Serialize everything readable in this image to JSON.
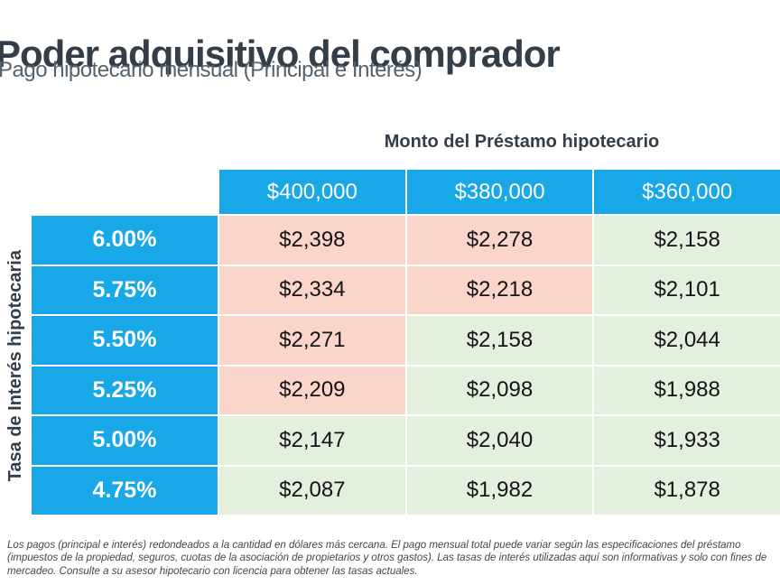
{
  "page": {
    "title": "Poder adquisitivo del comprador",
    "subtitle": "Pago hipotecario mensual (Principal e Interés)"
  },
  "table": {
    "column_group_label": "Monto del Préstamo hipotecario",
    "row_group_label": "Tasa de Interés hipotecaria",
    "columns": [
      "$400,000",
      "$380,000",
      "$360,000"
    ],
    "rows": [
      {
        "rate": "6.00%",
        "values": [
          "$2,398",
          "$2,278",
          "$2,158"
        ],
        "highlight": [
          "high",
          "high",
          "low"
        ]
      },
      {
        "rate": "5.75%",
        "values": [
          "$2,334",
          "$2,218",
          "$2,101"
        ],
        "highlight": [
          "high",
          "high",
          "low"
        ]
      },
      {
        "rate": "5.50%",
        "values": [
          "$2,271",
          "$2,158",
          "$2,044"
        ],
        "highlight": [
          "high",
          "low",
          "low"
        ]
      },
      {
        "rate": "5.25%",
        "values": [
          "$2,209",
          "$2,098",
          "$1,988"
        ],
        "highlight": [
          "high",
          "low",
          "low"
        ]
      },
      {
        "rate": "5.00%",
        "values": [
          "$2,147",
          "$2,040",
          "$1,933"
        ],
        "highlight": [
          "low",
          "low",
          "low"
        ]
      },
      {
        "rate": "4.75%",
        "values": [
          "$2,087",
          "$1,982",
          "$1,878"
        ],
        "highlight": [
          "low",
          "low",
          "low"
        ]
      }
    ]
  },
  "footnote": "Los pagos (principal e interés) redondeados a la cantidad en dólares más cercana. El pago mensual total puede variar según las especificaciones del préstamo (impuestos de la propiedad, seguros, cuotas de la asociación de propietarios y otros gastos). Las tasas de interés utilizadas aquí son informativas y solo con fines de mercadeo. Consulte a su asesor hipotecario con licencia para obtener las tasas actuales.",
  "colors": {
    "header_blue": "#18A8E8",
    "cell_pink": "#FBD4CA",
    "cell_green": "#E4F0DE",
    "title_dark": "#333E48",
    "subtitle_gray": "#54636D",
    "footnote_gray": "#3D474F"
  },
  "chart_data": {
    "type": "table",
    "title": "Poder adquisitivo del comprador",
    "subtitle": "Pago hipotecario mensual (Principal e Interés)",
    "columns_label": "Monto del Préstamo hipotecario",
    "rows_label": "Tasa de Interés hipotecaria",
    "columns": [
      "$400,000",
      "$380,000",
      "$360,000"
    ],
    "rows": [
      "6.00%",
      "5.75%",
      "5.50%",
      "5.25%",
      "5.00%",
      "4.75%"
    ],
    "values": [
      [
        2398,
        2278,
        2158
      ],
      [
        2334,
        2218,
        2101
      ],
      [
        2271,
        2158,
        2044
      ],
      [
        2209,
        2098,
        1988
      ],
      [
        2147,
        2040,
        1933
      ],
      [
        2087,
        1982,
        1878
      ]
    ],
    "cell_highlight": [
      [
        "pink",
        "pink",
        "green"
      ],
      [
        "pink",
        "pink",
        "green"
      ],
      [
        "pink",
        "green",
        "green"
      ],
      [
        "pink",
        "green",
        "green"
      ],
      [
        "green",
        "green",
        "green"
      ],
      [
        "green",
        "green",
        "green"
      ]
    ],
    "legend_position": "none",
    "grid": false
  }
}
